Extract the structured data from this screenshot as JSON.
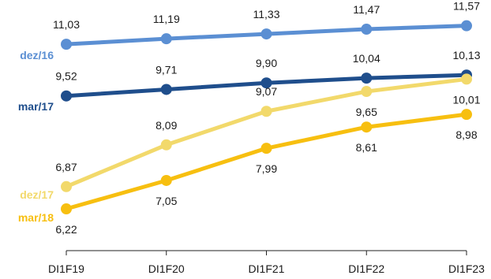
{
  "chart_data": {
    "type": "line",
    "x": [
      "DI1F19",
      "DI1F20",
      "DI1F21",
      "DI1F22",
      "DI1F23"
    ],
    "ylim": [
      5.0,
      12.0
    ],
    "grid": false,
    "legend": "none",
    "series": [
      {
        "name": "dez/16",
        "color": "#5b8fd3",
        "values": [
          11.03,
          11.19,
          11.33,
          11.47,
          11.57
        ],
        "labels": [
          "11,03",
          "11,19",
          "11,33",
          "11,47",
          "11,57"
        ],
        "label_pos": [
          "above",
          "above",
          "above",
          "above",
          "above"
        ]
      },
      {
        "name": "mar/17",
        "color": "#1f4e8c",
        "values": [
          9.52,
          9.71,
          9.9,
          10.04,
          10.13
        ],
        "labels": [
          "9,52",
          "9,71",
          "9,90",
          "10,04",
          "10,13"
        ],
        "label_pos": [
          "above",
          "above",
          "above",
          "above",
          "above"
        ]
      },
      {
        "name": "dez/17",
        "color": "#f2d96b",
        "values": [
          6.87,
          8.09,
          9.07,
          9.65,
          10.01
        ],
        "labels": [
          "6,87",
          "8,09",
          "9,07",
          "9,65",
          "10,01"
        ],
        "label_pos": [
          "above",
          "above",
          "above",
          "below",
          "below"
        ]
      },
      {
        "name": "mar/18",
        "color": "#f7bf10",
        "values": [
          6.22,
          7.05,
          7.99,
          8.61,
          8.98
        ],
        "labels": [
          "6,22",
          "7,05",
          "7,99",
          "8,61",
          "8,98"
        ],
        "label_pos": [
          "below",
          "below",
          "below",
          "below",
          "below"
        ]
      }
    ]
  }
}
